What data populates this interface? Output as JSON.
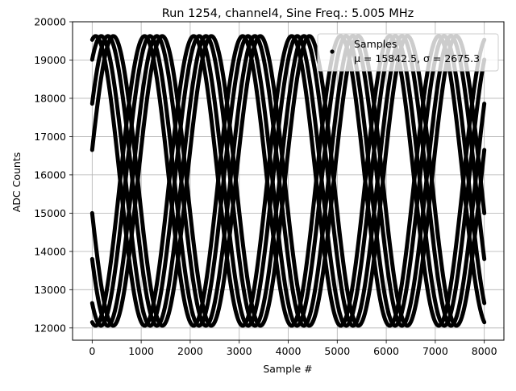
{
  "chart_data": {
    "type": "scatter",
    "title": "Run 1254, channel4, Sine Freq.: 5.005 MHz",
    "xlabel": "Sample #",
    "ylabel": "ADC Counts",
    "xlim": [
      -400,
      8400
    ],
    "ylim": [
      11680,
      20000
    ],
    "xticks": [
      0,
      1000,
      2000,
      3000,
      4000,
      5000,
      6000,
      7000,
      8000
    ],
    "yticks": [
      12000,
      13000,
      14000,
      15000,
      16000,
      17000,
      18000,
      19000,
      20000
    ],
    "grid": true,
    "legend": {
      "position": "top-right",
      "entries": [
        {
          "label": "Samples",
          "stats": "μ = 15842.5, σ = 2675.3"
        }
      ]
    },
    "series": [
      {
        "name": "Samples",
        "color": "#000000",
        "marker": "point",
        "model": "sine",
        "offset": 15842.5,
        "amplitude": 3783.3,
        "period_samples": 2000,
        "phase_starts_adc": [
          19530,
          19010,
          17860,
          16650,
          15000,
          13800,
          12650,
          12150
        ],
        "x_range": [
          0,
          8000
        ]
      }
    ]
  }
}
